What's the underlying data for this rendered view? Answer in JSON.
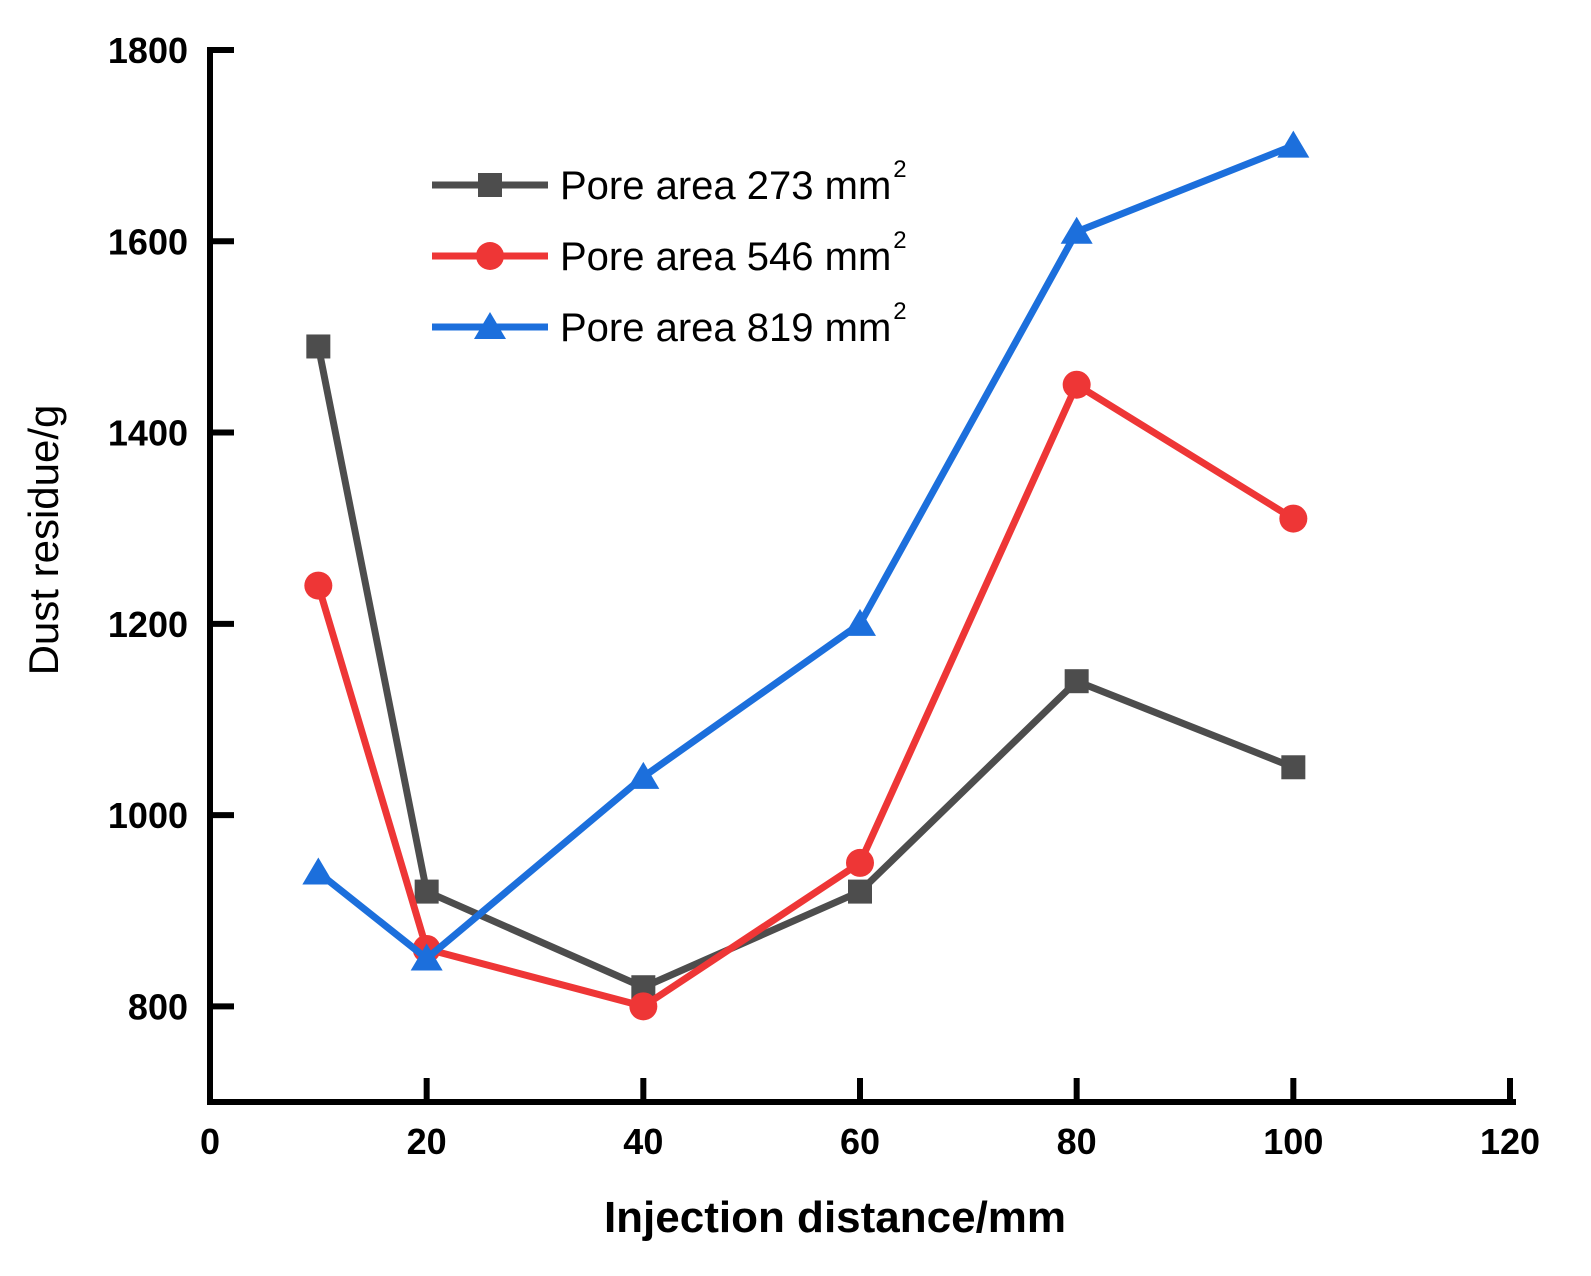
{
  "chart_data": {
    "type": "line",
    "title": "",
    "xlabel": "Injection distance/mm",
    "ylabel": "Dust residue/g",
    "xlim": [
      0,
      120
    ],
    "ylim": [
      700,
      1800
    ],
    "x_ticks": [
      0,
      20,
      40,
      60,
      80,
      100,
      120
    ],
    "y_ticks": [
      800,
      1000,
      1200,
      1400,
      1600,
      1800
    ],
    "x_tick_labels": [
      "0",
      "20",
      "40",
      "60",
      "80",
      "100",
      "120"
    ],
    "y_tick_labels": [
      "800",
      "1000",
      "1200",
      "1400",
      "1600",
      "1800"
    ],
    "grid": false,
    "legend_position": "top-center",
    "x": [
      10,
      20,
      40,
      60,
      80,
      100
    ],
    "series": [
      {
        "name": "Pore area 273 mm",
        "superscript": "2",
        "marker": "square",
        "color": "#4d4d4d",
        "values": [
          1490,
          920,
          820,
          920,
          1140,
          1050
        ]
      },
      {
        "name": "Pore area 546 mm",
        "superscript": "2",
        "marker": "circle",
        "color": "#ee3636",
        "values": [
          1240,
          860,
          800,
          950,
          1450,
          1310
        ]
      },
      {
        "name": "Pore area 819 mm",
        "superscript": "2",
        "marker": "triangle",
        "color": "#1c6fdc",
        "values": [
          940,
          850,
          1040,
          1200,
          1610,
          1700
        ]
      }
    ]
  }
}
